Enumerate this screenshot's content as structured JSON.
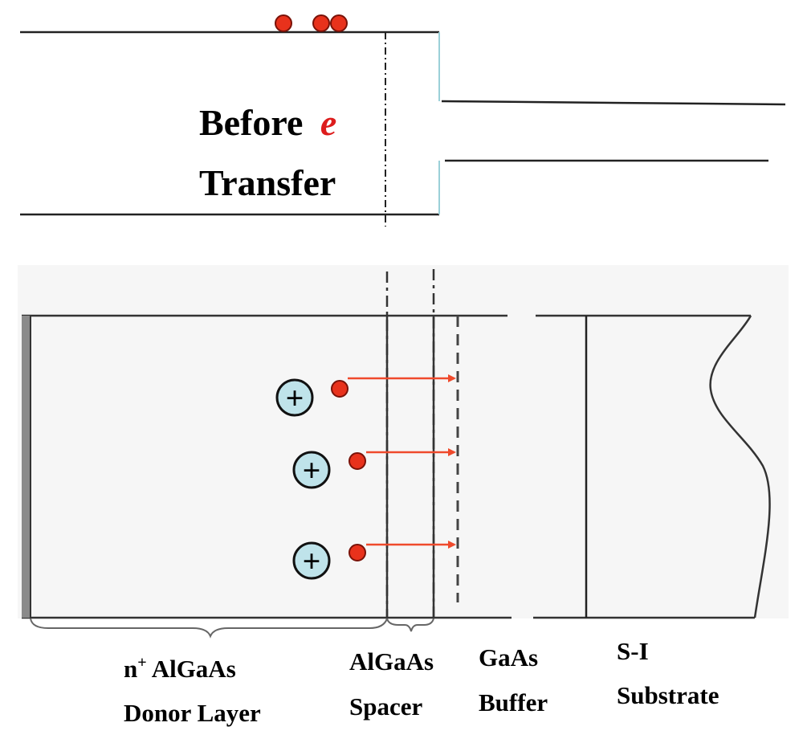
{
  "title": {
    "line1_word": "Before",
    "line1_symbol": "e",
    "line2": "Transfer"
  },
  "layers": [
    {
      "line1": "n",
      "line1_sup": "+",
      "line1_rest": " AlGaAs",
      "line2": "Donor Layer"
    },
    {
      "line1": "AlGaAs",
      "line2": "Spacer"
    },
    {
      "line1": "GaAs",
      "line2": "Buffer"
    },
    {
      "line1": "S-I",
      "line2": "Substrate"
    }
  ],
  "symbols": {
    "donor_ion": "+"
  },
  "colors": {
    "electron": "#e8321c",
    "electron_outline": "#7a1208",
    "arrow": "#ef4a2c",
    "ion_fill": "#bfe3ea",
    "line": "#222222",
    "e_label": "#dd1c1c"
  }
}
